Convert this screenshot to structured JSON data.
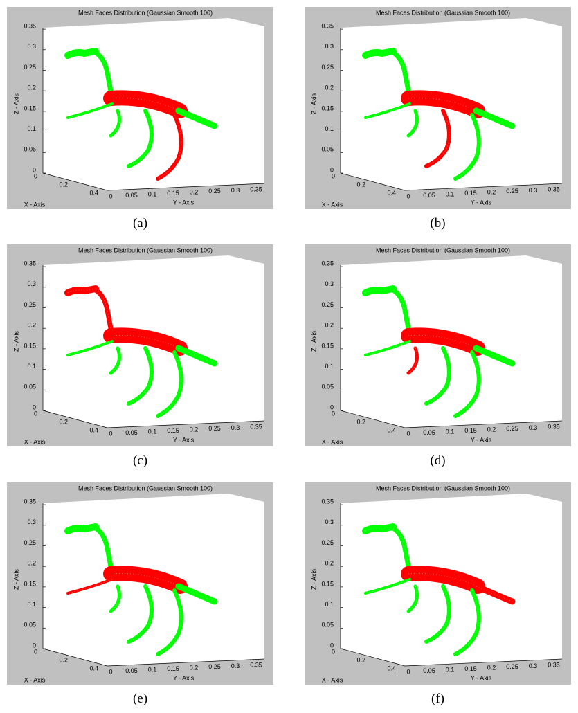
{
  "panels": [
    {
      "title": "Mesh Faces Distribution (Gaussian Smooth 100)",
      "z_label": "Z - Axis",
      "x_label": "X - Axis",
      "y_label": "Y - Axis",
      "z_ticks": [
        "0",
        "0.05",
        "0.1",
        "0.15",
        "0.2",
        "0.25",
        "0.3",
        "0.35"
      ],
      "x_ticks": [
        "0",
        "0.2",
        "0.4"
      ],
      "y_ticks": [
        "0",
        "0.05",
        "0.1",
        "0.15",
        "0.2",
        "0.25",
        "0.3",
        "0.35"
      ],
      "caption": "(a)"
    },
    {
      "title": "Mesh Faces Distribution (Gaussian Smooth 100)",
      "z_label": "Z - Axis",
      "x_label": "X - Axis",
      "y_label": "Y - Axis",
      "z_ticks": [
        "0",
        "0.05",
        "0.1",
        "0.15",
        "0.2",
        "0.25",
        "0.3",
        "0.35"
      ],
      "x_ticks": [
        "0",
        "0.2",
        "0.4"
      ],
      "y_ticks": [
        "0",
        "0.05",
        "0.1",
        "0.15",
        "0.2",
        "0.25",
        "0.3",
        "0.35"
      ],
      "caption": "(b)"
    },
    {
      "title": "Mesh Faces Distribution (Gaussian Smooth 100)",
      "z_label": "Z - Axis",
      "x_label": "X - Axis",
      "y_label": "Y - Axis",
      "z_ticks": [
        "0",
        "0.05",
        "0.1",
        "0.15",
        "0.2",
        "0.25",
        "0.3",
        "0.35"
      ],
      "x_ticks": [
        "0",
        "0.2",
        "0.4"
      ],
      "y_ticks": [
        "0",
        "0.05",
        "0.1",
        "0.15",
        "0.2",
        "0.25",
        "0.3",
        "0.35"
      ],
      "caption": "(c)"
    },
    {
      "title": "Mesh Faces Distribution (Gaussian Smooth 100)",
      "z_label": "Z - Axis",
      "x_label": "X - Axis",
      "y_label": "Y - Axis",
      "z_ticks": [
        "0",
        "0.05",
        "0.1",
        "0.15",
        "0.2",
        "0.25",
        "0.3",
        "0.35"
      ],
      "x_ticks": [
        "0",
        "0.2",
        "0.4"
      ],
      "y_ticks": [
        "0",
        "0.05",
        "0.1",
        "0.15",
        "0.2",
        "0.25",
        "0.3",
        "0.35"
      ],
      "caption": "(d)"
    },
    {
      "title": "Mesh Faces Distribution (Gaussian Smooth 100)",
      "z_label": "Z - Axis",
      "x_label": "X - Axis",
      "y_label": "Y - Axis",
      "z_ticks": [
        "0",
        "0.05",
        "0.1",
        "0.15",
        "0.2",
        "0.25",
        "0.3",
        "0.35"
      ],
      "x_ticks": [
        "0",
        "0.2",
        "0.4"
      ],
      "y_ticks": [
        "0",
        "0.05",
        "0.1",
        "0.15",
        "0.2",
        "0.25",
        "0.3",
        "0.35"
      ],
      "caption": "(e)"
    },
    {
      "title": "Mesh Faces Distribution (Gaussian Smooth 100)",
      "z_label": "Z - Axis",
      "x_label": "X - Axis",
      "y_label": "Y - Axis",
      "z_ticks": [
        "0",
        "0.05",
        "0.1",
        "0.15",
        "0.2",
        "0.25",
        "0.3",
        "0.35"
      ],
      "x_ticks": [
        "0",
        "0.2",
        "0.4"
      ],
      "y_ticks": [
        "0",
        "0.05",
        "0.1",
        "0.15",
        "0.2",
        "0.25",
        "0.3",
        "0.35"
      ],
      "caption": "(f)"
    }
  ]
}
